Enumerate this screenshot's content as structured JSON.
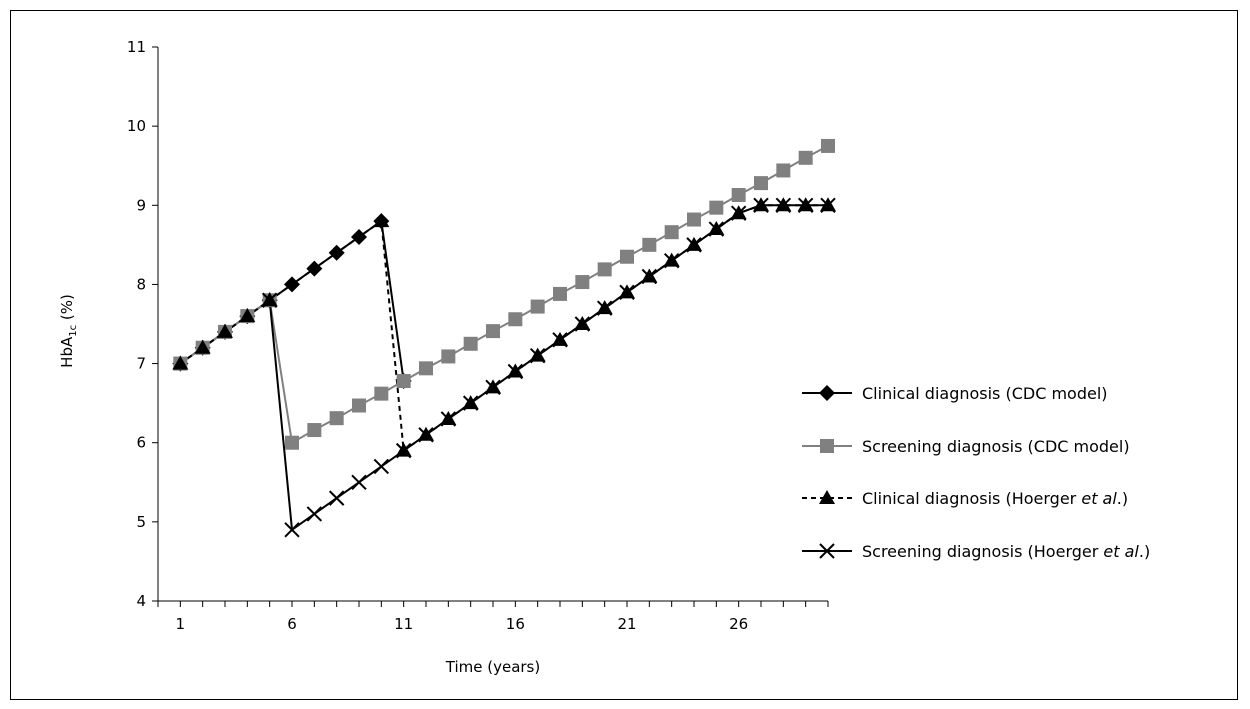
{
  "chart_data": {
    "type": "line",
    "xlabel": "Time (years)",
    "ylabel": "HbA1c (%)",
    "xlim": [
      0,
      30
    ],
    "ylim": [
      4,
      11
    ],
    "x_ticks": [
      1,
      6,
      11,
      16,
      21,
      26
    ],
    "y_ticks": [
      4,
      5,
      6,
      7,
      8,
      9,
      10,
      11
    ],
    "grid": false,
    "legend_position": "right",
    "series": [
      {
        "name": "Clinical diagnosis (CDC model)",
        "color": "#000000",
        "dash": "solid",
        "marker": "diamond",
        "x": [
          1,
          2,
          3,
          4,
          5,
          6,
          7,
          8,
          9,
          10,
          11
        ],
        "y": [
          7.0,
          7.2,
          7.4,
          7.6,
          7.8,
          8.0,
          8.2,
          8.4,
          8.6,
          8.8,
          6.78
        ]
      },
      {
        "name": "Screening diagnosis (CDC model)",
        "color": "#808080",
        "dash": "solid",
        "marker": "square",
        "x": [
          1,
          2,
          3,
          4,
          5,
          6,
          7,
          8,
          9,
          10,
          11,
          12,
          13,
          14,
          15,
          16,
          17,
          18,
          19,
          20,
          21,
          22,
          23,
          24,
          25,
          26,
          27,
          28,
          29,
          30
        ],
        "y": [
          7.0,
          7.2,
          7.4,
          7.6,
          7.8,
          6.0,
          6.16,
          6.31,
          6.47,
          6.62,
          6.78,
          6.94,
          7.09,
          7.25,
          7.41,
          7.56,
          7.72,
          7.88,
          8.03,
          8.19,
          8.35,
          8.5,
          8.66,
          8.82,
          8.97,
          9.13,
          9.28,
          9.44,
          9.6,
          9.75
        ]
      },
      {
        "name": "Clinical diagnosis (Hoerger et al.)",
        "color": "#000000",
        "dash": "dashed",
        "marker": "triangle",
        "x": [
          1,
          2,
          3,
          4,
          5,
          10,
          11,
          12,
          13,
          14,
          15,
          16,
          17,
          18,
          19,
          20,
          21,
          22,
          23,
          24,
          25,
          26,
          27,
          28,
          29,
          30
        ],
        "y": [
          7.0,
          7.2,
          7.4,
          7.6,
          7.8,
          8.8,
          5.9,
          6.1,
          6.3,
          6.5,
          6.7,
          6.9,
          7.1,
          7.3,
          7.5,
          7.7,
          7.9,
          8.1,
          8.3,
          8.5,
          8.7,
          8.9,
          9.0,
          9.0,
          9.0,
          9.0
        ]
      },
      {
        "name": "Screening diagnosis (Hoerger et al.)",
        "color": "#000000",
        "dash": "solid",
        "marker": "cross",
        "x": [
          5,
          6,
          7,
          8,
          9,
          10,
          11,
          12,
          13,
          14,
          15,
          16,
          17,
          18,
          19,
          20,
          21,
          22,
          23,
          24,
          25,
          26,
          27,
          28,
          29,
          30
        ],
        "y": [
          7.8,
          4.9,
          5.1,
          5.3,
          5.5,
          5.7,
          5.9,
          6.1,
          6.3,
          6.5,
          6.7,
          6.9,
          7.1,
          7.3,
          7.5,
          7.7,
          7.9,
          8.1,
          8.3,
          8.5,
          8.7,
          8.9,
          9.0,
          9.0,
          9.0,
          9.0
        ]
      }
    ],
    "legend_labels": [
      {
        "pre": "Clinical diagnosis (CDC model)",
        "ital": "",
        "post": ""
      },
      {
        "pre": "Screening diagnosis (CDC model)",
        "ital": "",
        "post": ""
      },
      {
        "pre": "Clinical diagnosis (Hoerger ",
        "ital": "et al",
        "post": ".)"
      },
      {
        "pre": "Screening diagnosis (Hoerger ",
        "ital": "et al",
        "post": ".)"
      }
    ],
    "ylabel_parts": {
      "main": "HbA",
      "sub": "1c",
      "rest": " (%)"
    }
  }
}
